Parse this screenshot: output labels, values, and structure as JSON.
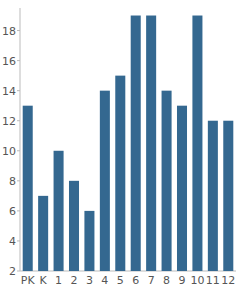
{
  "chart_data": {
    "type": "bar",
    "categories": [
      "PK",
      "K",
      "1",
      "2",
      "3",
      "4",
      "5",
      "6",
      "7",
      "8",
      "9",
      "10",
      "11",
      "12"
    ],
    "values": [
      13,
      7,
      10,
      8,
      6,
      14,
      15,
      19,
      19,
      14,
      13,
      19,
      12,
      12
    ],
    "color": "#346890",
    "ylim": [
      2,
      19.5
    ],
    "yticks": [
      2,
      4,
      6,
      8,
      10,
      12,
      14,
      16,
      18
    ],
    "grid": false
  }
}
